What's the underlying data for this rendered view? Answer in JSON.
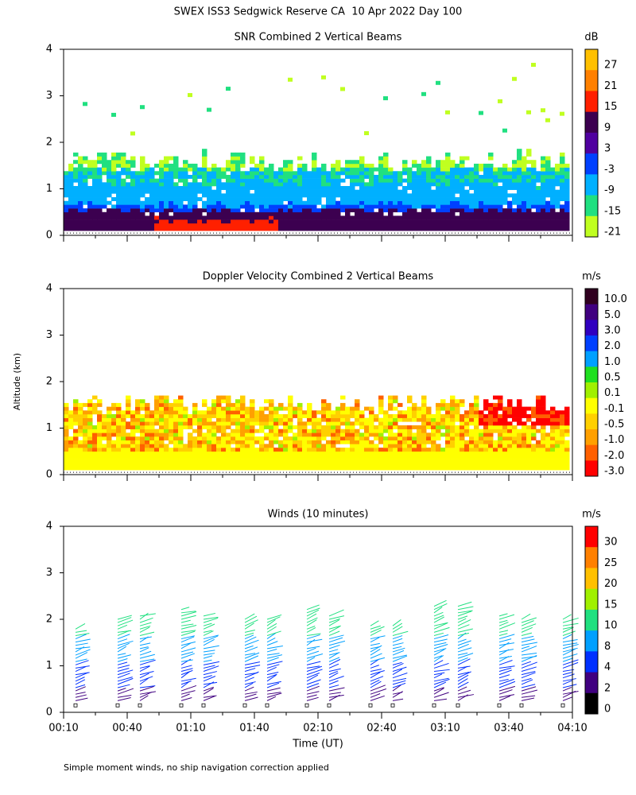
{
  "title": "SWEX ISS3 Sedgwick Reserve CA  10 Apr 2022 Day 100",
  "y_axis": {
    "label": "Altitude (km)",
    "ticks": [
      0,
      1,
      2,
      3,
      4
    ]
  },
  "x_axis": {
    "label": "Time (UT)",
    "ticks": [
      "00:10",
      "00:40",
      "01:10",
      "01:40",
      "02:10",
      "02:40",
      "03:10",
      "03:40",
      "04:10"
    ]
  },
  "panels": [
    {
      "title": "SNR Combined 2 Vertical Beams",
      "unit": "dB",
      "colorbar": {
        "labels": [
          "27",
          "21",
          "15",
          "9",
          "3",
          "-3",
          "-9",
          "-15",
          "-21"
        ],
        "colors": [
          "#ffc000",
          "#ff8000",
          "#ff2000",
          "#3c0050",
          "#5000a0",
          "#0040ff",
          "#00b0ff",
          "#20e080",
          "#c0ff20"
        ]
      }
    },
    {
      "title": "Doppler Velocity Combined 2 Vertical Beams",
      "unit": "m/s",
      "colorbar": {
        "labels": [
          "10.0",
          "5.0",
          "3.0",
          "2.0",
          "1.0",
          "0.5",
          "0.1",
          "-0.1",
          "-0.5",
          "-1.0",
          "-2.0",
          "-3.0"
        ],
        "colors": [
          "#300020",
          "#400080",
          "#3000c0",
          "#0040ff",
          "#00a0ff",
          "#20e020",
          "#a0f000",
          "#ffff00",
          "#ffd000",
          "#ffa000",
          "#ff6000",
          "#ff0000"
        ]
      }
    },
    {
      "title": "Winds (10 minutes)",
      "unit": "m/s",
      "colorbar": {
        "labels": [
          "30",
          "25",
          "20",
          "15",
          "10",
          "8",
          "4",
          "2",
          "0"
        ],
        "colors": [
          "#ff0000",
          "#ff8000",
          "#ffc000",
          "#a0f000",
          "#20e080",
          "#00a0ff",
          "#0030ff",
          "#400080",
          "#000000"
        ]
      }
    }
  ],
  "footnote": "Simple moment winds, no ship navigation correction applied"
}
